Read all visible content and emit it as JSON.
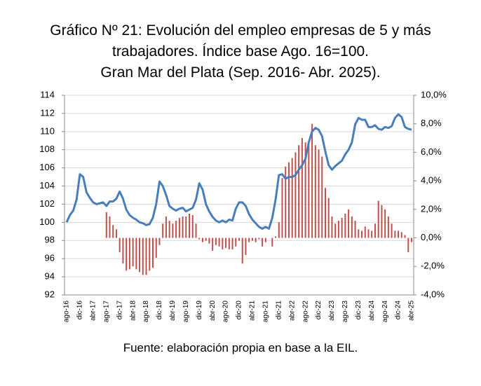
{
  "chart_data": {
    "type": "bar-line",
    "title": [
      "Gráfico Nº 21: Evolución del empleo empresas de 5 y más",
      "trabajadores. Índice base Ago. 16=100.",
      "Gran Mar del Plata (Sep. 2016- Abr. 2025)."
    ],
    "source": "Fuente: elaboración propia en base a la EIL.",
    "categories": [
      "ago-16",
      null,
      null,
      null,
      "dic-16",
      null,
      null,
      null,
      "abr-17",
      null,
      null,
      null,
      "ago-17",
      null,
      null,
      null,
      "dic-17",
      null,
      null,
      null,
      "abr-18",
      null,
      null,
      null,
      "ago-18",
      null,
      null,
      null,
      "dic-18",
      null,
      null,
      null,
      "abr-19",
      null,
      null,
      null,
      "ago-19",
      null,
      null,
      null,
      "dic-19",
      null,
      null,
      null,
      "abr-20",
      null,
      null,
      null,
      "ago-20",
      null,
      null,
      null,
      "dic-20",
      null,
      null,
      null,
      "abr-21",
      null,
      null,
      null,
      "ago-21",
      null,
      null,
      null,
      "dic-21",
      null,
      null,
      null,
      "abr-22",
      null,
      null,
      null,
      "ago-22",
      null,
      null,
      null,
      "dic-22",
      null,
      null,
      null,
      "abr-23",
      null,
      null,
      null,
      "ago-23",
      null,
      null,
      null,
      "dic-23",
      null,
      null,
      null,
      "abr-24",
      null,
      null,
      null,
      "ago-24",
      null,
      null,
      null,
      "dic-24",
      null,
      null,
      null,
      "abr-25"
    ],
    "series": [
      {
        "type": "line",
        "color": "#4a7ebb",
        "values": [
          100.0,
          100.8,
          101.3,
          102.5,
          105.3,
          105.0,
          103.3,
          102.7,
          102.2,
          102.0,
          102.1,
          102.2,
          101.8,
          102.3,
          102.3,
          102.6,
          103.4,
          102.6,
          101.4,
          100.8,
          100.5,
          100.3,
          100.0,
          99.9,
          99.7,
          99.8,
          100.5,
          102.0,
          104.5,
          104.0,
          103.0,
          101.8,
          101.5,
          101.3,
          101.5,
          101.6,
          101.2,
          101.4,
          101.6,
          102.5,
          104.3,
          103.6,
          102.0,
          101.2,
          100.6,
          100.2,
          100.0,
          100.2,
          100.0,
          100.3,
          100.2,
          101.5,
          102.2,
          102.2,
          101.8,
          100.9,
          100.3,
          99.9,
          99.5,
          99.3,
          99.5,
          99.3,
          100.5,
          102.5,
          105.2,
          105.3,
          104.8,
          105.0,
          105.0,
          105.2,
          105.8,
          106.3,
          107.0,
          108.8,
          110.0,
          110.4,
          110.2,
          109.5,
          107.8,
          106.3,
          105.8,
          106.2,
          106.5,
          106.8,
          107.5,
          108.0,
          108.8,
          110.8,
          111.5,
          111.3,
          111.3,
          110.5,
          110.5,
          110.7,
          110.3,
          110.2,
          110.5,
          110.4,
          110.6,
          111.5,
          111.9,
          111.6,
          110.5,
          110.3,
          110.2
        ]
      },
      {
        "type": "bar",
        "axis": "y2",
        "color": "#c0504d",
        "values": [
          null,
          null,
          null,
          null,
          null,
          null,
          null,
          null,
          null,
          null,
          null,
          null,
          1.8,
          1.5,
          0.9,
          0.6,
          -1.0,
          -1.8,
          -2.3,
          -2.2,
          -2.0,
          -2.2,
          -2.4,
          -2.6,
          -2.6,
          -2.3,
          -2.1,
          -1.4,
          -0.5,
          1.0,
          1.5,
          1.2,
          1.0,
          1.2,
          1.4,
          1.5,
          1.5,
          1.7,
          1.6,
          1.0,
          -0.1,
          -0.3,
          -0.2,
          -0.4,
          -0.9,
          -0.5,
          -0.6,
          -0.8,
          -0.7,
          -0.8,
          -0.8,
          -0.6,
          -0.2,
          -1.8,
          -1.2,
          -0.3,
          -0.2,
          -0.3,
          -0.1,
          -0.6,
          -0.3,
          0.0,
          -0.6,
          0.1,
          1.1,
          4.2,
          5.0,
          5.3,
          5.6,
          6.0,
          6.5,
          7.0,
          6.7,
          6.6,
          8.0,
          6.5,
          6.2,
          5.7,
          3.5,
          2.8,
          1.5,
          1.0,
          1.2,
          1.4,
          1.7,
          2.0,
          1.5,
          1.2,
          0.6,
          0.5,
          0.8,
          0.6,
          0.5,
          1.0,
          2.6,
          2.3,
          2.0,
          1.5,
          1.0,
          0.5,
          0.5,
          0.4,
          0.2,
          -1.0,
          -0.3
        ]
      }
    ],
    "ylim": [
      92,
      114
    ],
    "yticks": [
      92,
      94,
      96,
      98,
      100,
      102,
      104,
      106,
      108,
      110,
      112,
      114
    ],
    "y2lim": [
      -4,
      10
    ],
    "y2ticks": [
      {
        "value": -4,
        "label": "-4,0%"
      },
      {
        "value": -2,
        "label": "-2,0%"
      },
      {
        "value": 0,
        "label": "0,0%"
      },
      {
        "value": 2,
        "label": "2,0%"
      },
      {
        "value": 4,
        "label": "4,0%"
      },
      {
        "value": 6,
        "label": "6,0%"
      },
      {
        "value": 8,
        "label": "8,0%"
      },
      {
        "value": 10,
        "label": "10,0%"
      }
    ],
    "grid": true
  }
}
